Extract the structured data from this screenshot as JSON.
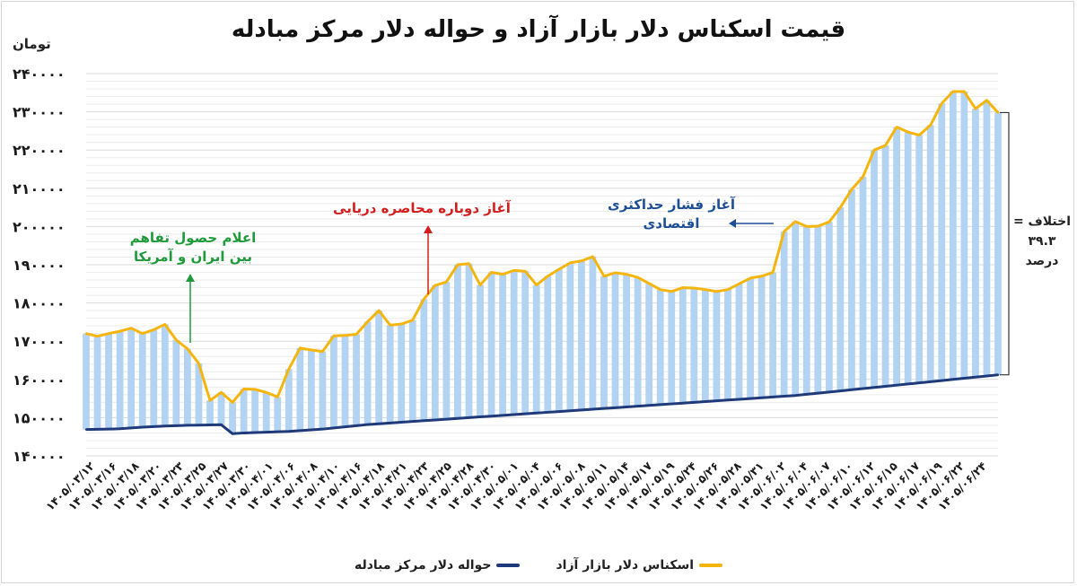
{
  "chart_data": {
    "type": "line",
    "title": "قیمت اسکناس دلار بازار آزاد و حواله دلار مرکز مبادله",
    "ylabel": "تومان",
    "xlabel": "",
    "ylim": [
      140000,
      240000
    ],
    "yticks": [
      "۲۴۰۰۰۰",
      "۲۳۰۰۰۰",
      "۲۲۰۰۰۰",
      "۲۱۰۰۰۰",
      "۲۰۰۰۰۰",
      "۱۹۰۰۰۰",
      "۱۸۰۰۰۰",
      "۱۷۰۰۰۰",
      "۱۶۰۰۰۰",
      "۱۵۰۰۰۰",
      "۱۴۰۰۰۰"
    ],
    "xticks": [
      "۱۴۰۵/۰۳/۱۲",
      "۱۴۰۵/۰۳/۱۶",
      "۱۴۰۵/۰۳/۱۸",
      "۱۴۰۵/۰۳/۲۰",
      "۱۴۰۵/۰۳/۲۳",
      "۱۴۰۵/۰۳/۲۵",
      "۱۴۰۵/۰۳/۲۷",
      "۱۴۰۵/۰۳/۳۰",
      "۱۴۰۵/۰۴/۰۱",
      "۱۴۰۵/۰۴/۰۶",
      "۱۴۰۵/۰۴/۰۸",
      "۱۴۰۵/۰۴/۱۰",
      "۱۴۰۵/۰۴/۱۶",
      "۱۴۰۵/۰۴/۱۸",
      "۱۴۰۵/۰۴/۲۱",
      "۱۴۰۵/۰۴/۲۳",
      "۱۴۰۵/۰۴/۲۵",
      "۱۴۰۵/۰۴/۲۸",
      "۱۴۰۵/۰۴/۳۰",
      "۱۴۰۵/۰۵/۰۱",
      "۱۴۰۵/۰۵/۰۴",
      "۱۴۰۵/۰۵/۰۶",
      "۱۴۰۵/۰۵/۰۸",
      "۱۴۰۵/۰۵/۱۱",
      "۱۴۰۵/۰۵/۱۴",
      "۱۴۰۵/۰۵/۱۷",
      "۱۴۰۵/۰۵/۱۹",
      "۱۴۰۵/۰۵/۲۴",
      "۱۴۰۵/۰۵/۲۶",
      "۱۴۰۵/۰۵/۲۸",
      "۱۴۰۵/۰۵/۳۱",
      "۱۴۰۵/۰۶/۰۲",
      "۱۴۰۵/۰۶/۰۴",
      "۱۴۰۵/۰۶/۰۷",
      "۱۴۰۵/۰۶/۱۰",
      "۱۴۰۵/۰۶/۱۲",
      "۱۴۰۵/۰۶/۱۵",
      "۱۴۰۵/۰۶/۱۷",
      "۱۴۰۵/۰۶/۱۹",
      "۱۴۰۵/۰۶/۲۲",
      "۱۴۰۵/۰۶/۲۴"
    ],
    "series": [
      {
        "name": "اسکناس دلار بازار آزاد",
        "color": "#f5b50f",
        "values": [
          172000,
          171300,
          172000,
          172600,
          173400,
          172000,
          173000,
          174400,
          170300,
          168000,
          164200,
          154500,
          156600,
          154000,
          157500,
          157400,
          156600,
          155400,
          162700,
          168200,
          167700,
          167300,
          171400,
          171500,
          171800,
          175100,
          178000,
          174200,
          174500,
          175500,
          181000,
          184600,
          185500,
          190000,
          190300,
          184700,
          188000,
          187500,
          188500,
          188300,
          184700,
          187000,
          188800,
          190500,
          191000,
          192100,
          187000,
          187900,
          187500,
          186700,
          185100,
          183500,
          183000,
          184000,
          183900,
          183500,
          183000,
          183500,
          185000,
          186500,
          187000,
          188000,
          198700,
          201300,
          200000,
          200100,
          201200,
          205000,
          209700,
          213000,
          220000,
          221200,
          226000,
          224700,
          223900,
          226500,
          232200,
          235300,
          235300,
          230800,
          233000,
          229800
        ]
      },
      {
        "name": "حواله دلار مرکز مبادله",
        "color": "#1f3a7a",
        "values": [
          146900,
          146950,
          147000,
          147100,
          147300,
          147500,
          147650,
          147800,
          147900,
          148000,
          148050,
          148100,
          148150,
          145800,
          146000,
          146100,
          146200,
          146300,
          146400,
          146600,
          146800,
          147000,
          147300,
          147600,
          147900,
          148200,
          148400,
          148600,
          148800,
          149000,
          149200,
          149400,
          149600,
          149800,
          150000,
          150200,
          150400,
          150600,
          150800,
          151000,
          151200,
          151400,
          151600,
          151800,
          152000,
          152200,
          152400,
          152600,
          152800,
          153000,
          153200,
          153400,
          153600,
          153800,
          154000,
          154200,
          154400,
          154600,
          154800,
          155000,
          155200,
          155400,
          155600,
          155800,
          156100,
          156400,
          156700,
          157000,
          157300,
          157600,
          157900,
          158200,
          158500,
          158800,
          159100,
          159400,
          159700,
          160000,
          160300,
          160600,
          160900,
          161200
        ]
      }
    ],
    "annotations": [
      "اعلام حصول تفاهم بین ایران و آمریکا",
      "آغاز دوباره محاصره دریایی",
      "آغاز فشار حداکثری اقتصادی"
    ],
    "difference_note": [
      "اختلاف =",
      "۳۹.۳",
      "درصد"
    ],
    "grid": true,
    "legend_position": "bottom"
  },
  "annotations": {
    "green_line1": "اعلام حصول تفاهم",
    "green_line2": "بین ایران و آمریکا",
    "red": "آغاز دوباره محاصره دریایی",
    "blue_line1": "آغاز فشار حداکثری",
    "blue_line2": "اقتصادی"
  },
  "difference": {
    "line1": "اختلاف =",
    "line2": "۳۹.۳",
    "line3": "درصد"
  },
  "legend": {
    "free_market": "اسکناس دلار بازار آزاد",
    "exchange_center": "حواله دلار مرکز مبادله"
  },
  "colors": {
    "free_market": "#f5b50f",
    "exchange_center": "#1f3a7a",
    "fill": "#b3d3f2",
    "green": "#1f9a3a",
    "red": "#d21e1e",
    "blue": "#1d4f97"
  }
}
